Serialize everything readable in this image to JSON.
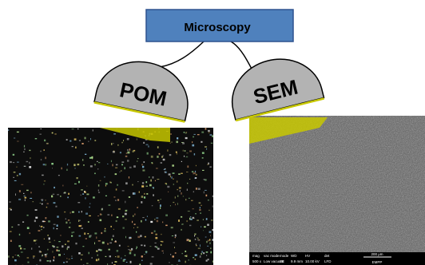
{
  "diagram": {
    "root": {
      "label": "Microscopy",
      "fill": "#4f81bd",
      "stroke": "#2f528f",
      "text_color": "#000000"
    },
    "children": [
      {
        "id": "pom",
        "label": "POM",
        "fill": "#b3b3b3",
        "stroke": "#000000",
        "accent": "#c8c800"
      },
      {
        "id": "sem",
        "label": "SEM",
        "fill": "#b3b3b3",
        "stroke": "#000000",
        "accent": "#c8c800"
      }
    ],
    "connector_color": "#000000"
  },
  "micrographs": {
    "pom": {
      "background": "#0d0d0d"
    },
    "sem": {
      "background": "#5a5a5a",
      "info_bar": {
        "headers": [
          "mag",
          "vac mode",
          "mode",
          "WD",
          "HV",
          "det"
        ],
        "values": [
          "500 x",
          "Low vacuum",
          "SE",
          "9.9 mm",
          "10.00 kV",
          "LFD"
        ],
        "scale_label": "200 μm",
        "institution": "EMPP"
      }
    }
  }
}
